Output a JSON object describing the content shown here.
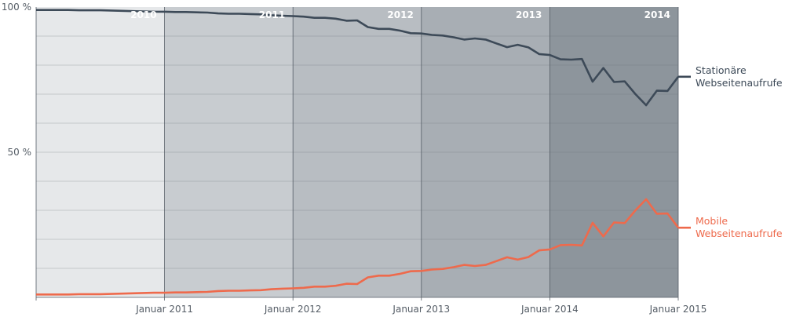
{
  "chart_data": {
    "type": "line",
    "title": "",
    "xlabel": "",
    "ylabel": "",
    "x_range": [
      "2010-01",
      "2015-01"
    ],
    "ylim": [
      0,
      100
    ],
    "grid": true,
    "y_ticks": [
      "100 %",
      "50 %"
    ],
    "x_ticks": [
      "Januar 2011",
      "Januar 2012",
      "Januar 2013",
      "Januar 2014",
      "Januar 2015"
    ],
    "bands": [
      {
        "label": "2010",
        "color": "#e6e8ea"
      },
      {
        "label": "2011",
        "color": "#c8ccd0"
      },
      {
        "label": "2012",
        "color": "#b8bdc2"
      },
      {
        "label": "2013",
        "color": "#a8aeb4"
      },
      {
        "label": "2014",
        "color": "#8d959c"
      }
    ],
    "series": [
      {
        "name": "Stationäre Webseitenaufrufe",
        "color": "#3d4a58",
        "label_lines": [
          "Stationäre",
          "Webseitenaufrufe"
        ],
        "points": [
          [
            "2010-01",
            99.0
          ],
          [
            "2010-02",
            99.0
          ],
          [
            "2010-03",
            99.0
          ],
          [
            "2010-04",
            99.0
          ],
          [
            "2010-05",
            98.9
          ],
          [
            "2010-06",
            98.9
          ],
          [
            "2010-07",
            98.9
          ],
          [
            "2010-08",
            98.8
          ],
          [
            "2010-09",
            98.7
          ],
          [
            "2010-10",
            98.6
          ],
          [
            "2010-11",
            98.5
          ],
          [
            "2010-12",
            98.4
          ],
          [
            "2011-01",
            98.4
          ],
          [
            "2011-02",
            98.3
          ],
          [
            "2011-03",
            98.3
          ],
          [
            "2011-04",
            98.2
          ],
          [
            "2011-05",
            98.1
          ],
          [
            "2011-06",
            97.8
          ],
          [
            "2011-07",
            97.7
          ],
          [
            "2011-08",
            97.7
          ],
          [
            "2011-09",
            97.6
          ],
          [
            "2011-10",
            97.5
          ],
          [
            "2011-11",
            97.2
          ],
          [
            "2011-12",
            97.0
          ],
          [
            "2012-01",
            96.9
          ],
          [
            "2012-02",
            96.7
          ],
          [
            "2012-03",
            96.3
          ],
          [
            "2012-04",
            96.3
          ],
          [
            "2012-05",
            96.0
          ],
          [
            "2012-06",
            95.3
          ],
          [
            "2012-07",
            95.4
          ],
          [
            "2012-08",
            93.1
          ],
          [
            "2012-09",
            92.5
          ],
          [
            "2012-10",
            92.5
          ],
          [
            "2012-11",
            91.9
          ],
          [
            "2012-12",
            91.0
          ],
          [
            "2013-01",
            90.9
          ],
          [
            "2013-02",
            90.4
          ],
          [
            "2013-03",
            90.2
          ],
          [
            "2013-04",
            89.6
          ],
          [
            "2013-05",
            88.8
          ],
          [
            "2013-06",
            89.2
          ],
          [
            "2013-07",
            88.8
          ],
          [
            "2013-08",
            87.5
          ],
          [
            "2013-09",
            86.2
          ],
          [
            "2013-10",
            87.0
          ],
          [
            "2013-11",
            86.1
          ],
          [
            "2013-12",
            83.8
          ],
          [
            "2014-01",
            83.5
          ],
          [
            "2014-02",
            82.0
          ],
          [
            "2014-03",
            81.9
          ],
          [
            "2014-04",
            82.1
          ],
          [
            "2014-05",
            74.3
          ],
          [
            "2014-06",
            79.0
          ],
          [
            "2014-07",
            74.2
          ],
          [
            "2014-08",
            74.4
          ],
          [
            "2014-09",
            70.0
          ],
          [
            "2014-10",
            66.2
          ],
          [
            "2014-11",
            71.2
          ],
          [
            "2014-12",
            71.1
          ],
          [
            "2015-01",
            76.0
          ]
        ]
      },
      {
        "name": "Mobile Webseitenaufrufe",
        "color": "#ee6a4c",
        "label_lines": [
          "Mobile",
          "Webseitenaufrufe"
        ],
        "points": [
          [
            "2010-01",
            1.0
          ],
          [
            "2010-02",
            1.0
          ],
          [
            "2010-03",
            1.0
          ],
          [
            "2010-04",
            1.0
          ],
          [
            "2010-05",
            1.1
          ],
          [
            "2010-06",
            1.1
          ],
          [
            "2010-07",
            1.1
          ],
          [
            "2010-08",
            1.2
          ],
          [
            "2010-09",
            1.3
          ],
          [
            "2010-10",
            1.4
          ],
          [
            "2010-11",
            1.5
          ],
          [
            "2010-12",
            1.6
          ],
          [
            "2011-01",
            1.6
          ],
          [
            "2011-02",
            1.7
          ],
          [
            "2011-03",
            1.7
          ],
          [
            "2011-04",
            1.8
          ],
          [
            "2011-05",
            1.9
          ],
          [
            "2011-06",
            2.2
          ],
          [
            "2011-07",
            2.3
          ],
          [
            "2011-08",
            2.3
          ],
          [
            "2011-09",
            2.4
          ],
          [
            "2011-10",
            2.5
          ],
          [
            "2011-11",
            2.8
          ],
          [
            "2011-12",
            3.0
          ],
          [
            "2012-01",
            3.1
          ],
          [
            "2012-02",
            3.3
          ],
          [
            "2012-03",
            3.7
          ],
          [
            "2012-04",
            3.7
          ],
          [
            "2012-05",
            4.0
          ],
          [
            "2012-06",
            4.7
          ],
          [
            "2012-07",
            4.6
          ],
          [
            "2012-08",
            6.9
          ],
          [
            "2012-09",
            7.5
          ],
          [
            "2012-10",
            7.5
          ],
          [
            "2012-11",
            8.1
          ],
          [
            "2012-12",
            9.0
          ],
          [
            "2013-01",
            9.1
          ],
          [
            "2013-02",
            9.6
          ],
          [
            "2013-03",
            9.8
          ],
          [
            "2013-04",
            10.4
          ],
          [
            "2013-05",
            11.2
          ],
          [
            "2013-06",
            10.8
          ],
          [
            "2013-07",
            11.2
          ],
          [
            "2013-08",
            12.5
          ],
          [
            "2013-09",
            13.8
          ],
          [
            "2013-10",
            13.0
          ],
          [
            "2013-11",
            13.9
          ],
          [
            "2013-12",
            16.2
          ],
          [
            "2014-01",
            16.5
          ],
          [
            "2014-02",
            18.0
          ],
          [
            "2014-03",
            18.1
          ],
          [
            "2014-04",
            17.9
          ],
          [
            "2014-05",
            25.7
          ],
          [
            "2014-06",
            21.0
          ],
          [
            "2014-07",
            25.8
          ],
          [
            "2014-08",
            25.6
          ],
          [
            "2014-09",
            30.0
          ],
          [
            "2014-10",
            33.8
          ],
          [
            "2014-11",
            28.8
          ],
          [
            "2014-12",
            28.9
          ],
          [
            "2015-01",
            24.0
          ]
        ]
      }
    ]
  }
}
